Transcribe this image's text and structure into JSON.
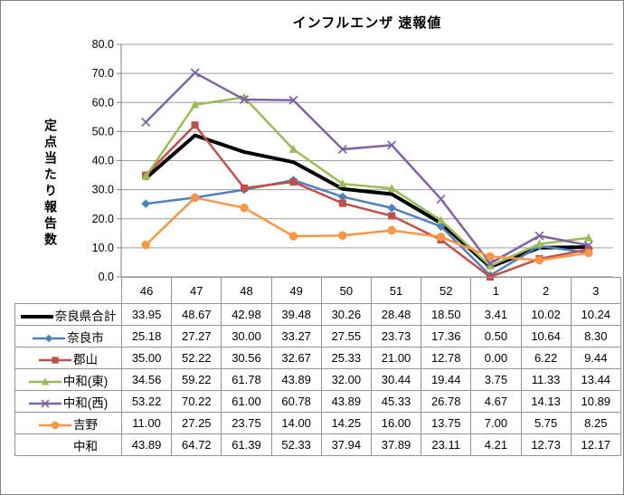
{
  "window": {
    "frame_border_color": "#808080",
    "background_color": "#ffffff"
  },
  "style": {
    "gridline_color": "#9c9c9c",
    "axis_color": "#7f7f7f",
    "table_border_color": "#949494",
    "text_color": "#000000"
  },
  "chart_data": {
    "type": "line",
    "title": "インフルエンザ 速報値",
    "ylabel": "定点当たり報告数",
    "xlabel": "",
    "grid": true,
    "legend_position": "data-table-left-column",
    "ylim": [
      0,
      80
    ],
    "ytick_step": 10,
    "ytick_labels": [
      "0.0",
      "10.0",
      "20.0",
      "30.0",
      "40.0",
      "50.0",
      "60.0",
      "70.0",
      "80.0"
    ],
    "categories": [
      "46",
      "47",
      "48",
      "49",
      "50",
      "51",
      "52",
      "1",
      "2",
      "3"
    ],
    "series": [
      {
        "name": "奈良県合計",
        "color": "#000000",
        "marker": "none",
        "line_width": 4,
        "plotted": true,
        "values": [
          33.95,
          48.67,
          42.98,
          39.48,
          30.26,
          28.48,
          18.5,
          3.41,
          10.02,
          10.24
        ]
      },
      {
        "name": "奈良市",
        "color": "#4F81BD",
        "marker": "diamond",
        "line_width": 2.5,
        "plotted": true,
        "values": [
          25.18,
          27.27,
          30.0,
          33.27,
          27.55,
          23.73,
          17.36,
          0.5,
          10.64,
          8.3
        ]
      },
      {
        "name": "郡山",
        "color": "#C0504D",
        "marker": "square",
        "line_width": 2.5,
        "plotted": true,
        "values": [
          35.0,
          52.22,
          30.56,
          32.67,
          25.33,
          21.0,
          12.78,
          0.0,
          6.22,
          9.44
        ]
      },
      {
        "name": "中和(東)",
        "color": "#9BBB59",
        "marker": "triangle",
        "line_width": 2.5,
        "plotted": true,
        "values": [
          34.56,
          59.22,
          61.78,
          43.89,
          32.0,
          30.44,
          19.44,
          3.75,
          11.33,
          13.44
        ]
      },
      {
        "name": "中和(西)",
        "color": "#8064A2",
        "marker": "x",
        "line_width": 2.5,
        "plotted": true,
        "values": [
          53.22,
          70.22,
          61.0,
          60.78,
          43.89,
          45.33,
          26.78,
          4.67,
          14.13,
          10.89
        ]
      },
      {
        "name": "吉野",
        "color": "#F79646",
        "marker": "circle",
        "line_width": 2.5,
        "plotted": true,
        "values": [
          11.0,
          27.25,
          23.75,
          14.0,
          14.25,
          16.0,
          13.75,
          7.0,
          5.75,
          8.25
        ]
      },
      {
        "name": "中和",
        "color": null,
        "marker": "none",
        "line_width": 0,
        "plotted": false,
        "values": [
          43.89,
          64.72,
          61.39,
          52.33,
          37.94,
          37.89,
          23.11,
          4.21,
          12.73,
          12.17
        ]
      }
    ],
    "value_format_decimals": 2
  }
}
